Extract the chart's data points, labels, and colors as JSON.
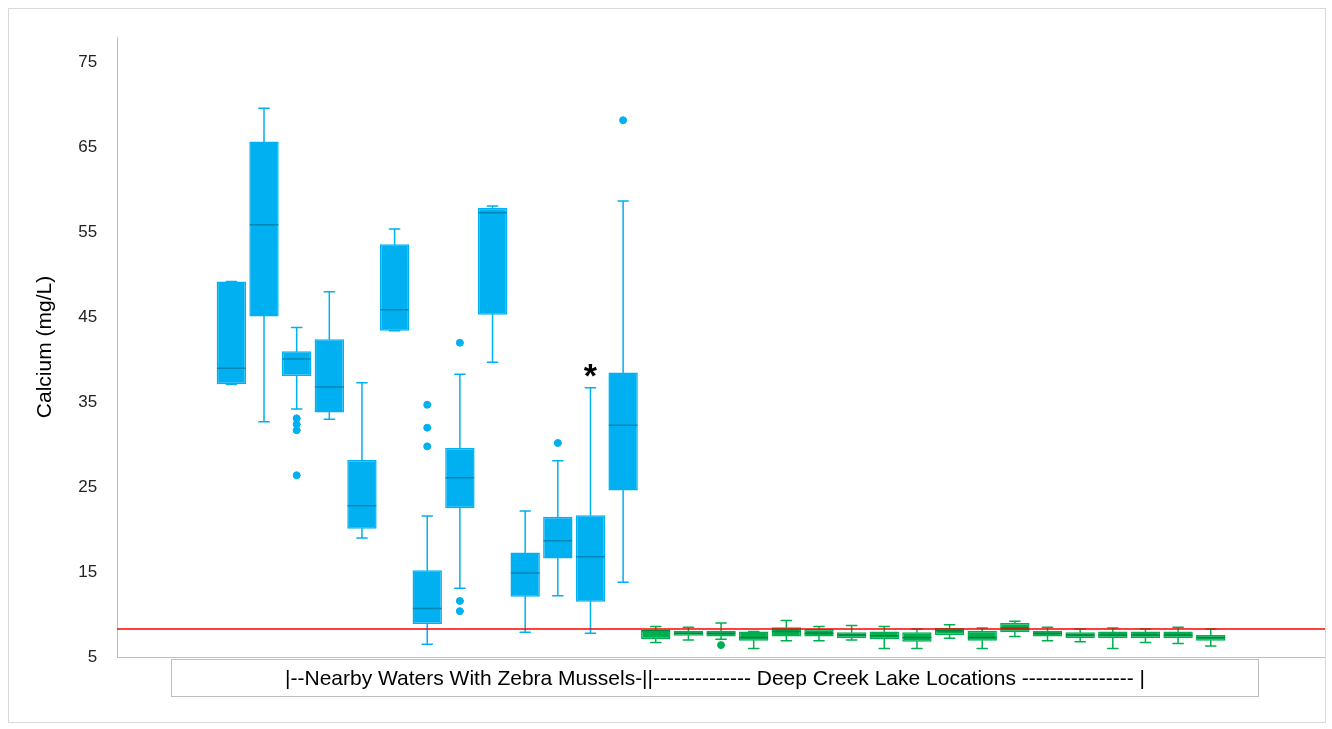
{
  "chart_data": {
    "type": "box",
    "ylabel": "Calcium (mg/L)",
    "ylim": [
      5,
      78
    ],
    "yticks": [
      5,
      15,
      25,
      35,
      45,
      55,
      65,
      75
    ],
    "tick_labels": "y",
    "categories": [
      null,
      null,
      null,
      null,
      null,
      null,
      null,
      null,
      null,
      null,
      null,
      null,
      null,
      null,
      null,
      null,
      null,
      null,
      null,
      null,
      null,
      null,
      null,
      null,
      null,
      null,
      null,
      null,
      null,
      null,
      null,
      null,
      null,
      null,
      null,
      null,
      null
    ],
    "series": [
      {
        "color": "#00b0f0",
        "boxes": [
          null,
          null,
          null,
          {
            "low": 37.1,
            "q1": 37.1,
            "median": 39.0,
            "q3": 49.2,
            "high": 49.2
          },
          {
            "low": 32.7,
            "q1": 45.1,
            "median": 55.9,
            "q3": 65.7,
            "high": 69.6
          },
          {
            "low": 34.2,
            "q1": 38.1,
            "median": 40.1,
            "q3": 41.0,
            "high": 43.8,
            "outliers": [
              33.1,
              32.4,
              31.7,
              26.4
            ]
          },
          {
            "low": 33.0,
            "q1": 33.8,
            "median": 36.8,
            "q3": 42.4,
            "high": 48.0
          },
          {
            "low": 19.0,
            "q1": 20.1,
            "median": 22.8,
            "q3": 28.2,
            "high": 37.3
          },
          {
            "low": 43.4,
            "q1": 43.4,
            "median": 45.9,
            "q3": 53.6,
            "high": 55.4
          },
          {
            "low": 6.5,
            "q1": 8.9,
            "median": 10.7,
            "q3": 15.2,
            "high": 21.6,
            "outliers": [
              34.7,
              32.0,
              29.8
            ]
          },
          {
            "low": 13.1,
            "q1": 22.5,
            "median": 26.1,
            "q3": 29.6,
            "high": 38.3,
            "outliers": [
              42.0,
              11.6,
              10.4
            ]
          },
          {
            "low": 39.7,
            "q1": 45.3,
            "median": 57.3,
            "q3": 57.9,
            "high": 58.1
          },
          {
            "low": 7.9,
            "q1": 12.1,
            "median": 14.9,
            "q3": 17.3,
            "high": 22.2
          },
          {
            "low": 12.2,
            "q1": 16.6,
            "median": 18.7,
            "q3": 21.5,
            "high": 28.1,
            "outliers": [
              30.2
            ]
          },
          {
            "low": 7.8,
            "q1": 11.5,
            "median": 16.8,
            "q3": 21.7,
            "high": 36.7
          },
          {
            "low": 13.8,
            "q1": 24.6,
            "median": 32.3,
            "q3": 38.5,
            "high": 58.7,
            "outliers": [
              68.2
            ]
          },
          null,
          null,
          null,
          null,
          null,
          null,
          null,
          null,
          null,
          null,
          null,
          null,
          null,
          null,
          null,
          null,
          null,
          null,
          null,
          null,
          null
        ]
      },
      {
        "color": "#00b050",
        "boxes": [
          null,
          null,
          null,
          null,
          null,
          null,
          null,
          null,
          null,
          null,
          null,
          null,
          null,
          null,
          null,
          null,
          {
            "low": 6.7,
            "q1": 7.1,
            "median": 8.1,
            "q3": 8.2,
            "high": 8.6
          },
          {
            "low": 7.0,
            "q1": 7.5,
            "median": 7.8,
            "q3": 8.1,
            "high": 8.5
          },
          {
            "low": 7.1,
            "q1": 7.4,
            "median": 7.8,
            "q3": 8.1,
            "high": 9.0,
            "outliers": [
              6.4
            ]
          },
          {
            "low": 6.0,
            "q1": 6.9,
            "median": 7.3,
            "q3": 8.0,
            "high": 8.0
          },
          {
            "low": 6.9,
            "q1": 7.4,
            "median": 8.0,
            "q3": 8.5,
            "high": 9.3
          },
          {
            "low": 6.9,
            "q1": 7.4,
            "median": 7.8,
            "q3": 8.3,
            "high": 8.6
          },
          {
            "low": 7.0,
            "q1": 7.2,
            "median": 7.6,
            "q3": 7.9,
            "high": 8.7
          },
          {
            "low": 6.0,
            "q1": 7.1,
            "median": 7.5,
            "q3": 8.0,
            "high": 8.6
          },
          {
            "low": 6.0,
            "q1": 6.8,
            "median": 7.3,
            "q3": 7.9,
            "high": 8.3
          },
          {
            "low": 7.2,
            "q1": 7.6,
            "median": 8.1,
            "q3": 8.4,
            "high": 8.8
          },
          {
            "low": 6.0,
            "q1": 6.9,
            "median": 7.3,
            "q3": 8.1,
            "high": 8.4
          },
          {
            "low": 7.4,
            "q1": 7.9,
            "median": 8.4,
            "q3": 9.0,
            "high": 9.2
          },
          {
            "low": 6.9,
            "q1": 7.4,
            "median": 7.8,
            "q3": 8.1,
            "high": 8.5
          },
          {
            "low": 6.8,
            "q1": 7.2,
            "median": 7.6,
            "q3": 7.9,
            "high": 8.3
          },
          {
            "low": 6.0,
            "q1": 7.2,
            "median": 7.6,
            "q3": 8.0,
            "high": 8.4
          },
          {
            "low": 6.7,
            "q1": 7.2,
            "median": 7.6,
            "q3": 8.0,
            "high": 8.3
          },
          {
            "low": 6.6,
            "q1": 7.2,
            "median": 7.6,
            "q3": 8.0,
            "high": 8.5
          },
          {
            "low": 6.3,
            "q1": 6.9,
            "median": 7.3,
            "q3": 7.6,
            "high": 8.3
          },
          null,
          null,
          null
        ]
      }
    ],
    "ref_lines": [
      {
        "axis": "y",
        "value": 8.3,
        "color": "#ff0000"
      }
    ],
    "annotations": [
      "*",
      "|--Nearby Waters With Zebra Mussels-||-------------- Deep Creek Lake Locations ---------------- |"
    ]
  }
}
